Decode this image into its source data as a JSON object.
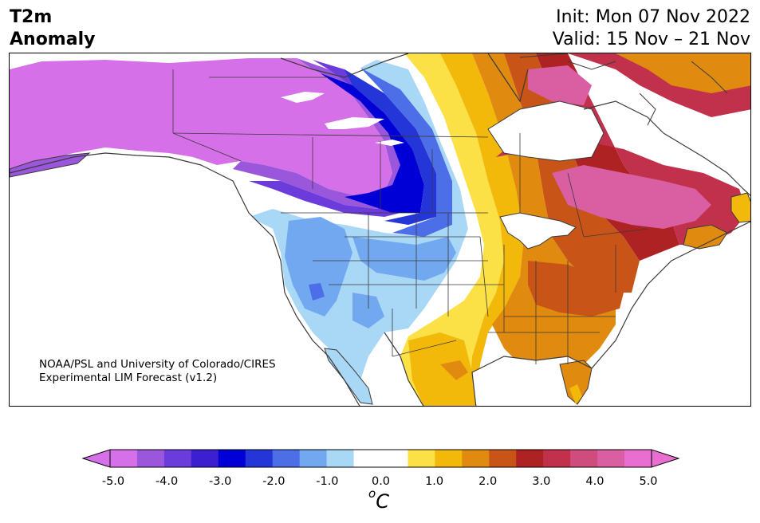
{
  "title": {
    "line1": "T2m",
    "line2": "Anomaly"
  },
  "init": {
    "line1": "Init: Mon 07 Nov 2022",
    "line2": "Valid: 15 Nov – 21 Nov"
  },
  "credit": {
    "line1": "NOAA/PSL and University of Colorado/CIRES",
    "line2": "Experimental LIM Forecast (v1.2)"
  },
  "colorbar": {
    "unit_base": "C",
    "unit_sup": "o",
    "ticks": [
      "-5.0",
      "-4.0",
      "-3.0",
      "-2.0",
      "-1.0",
      "0.0",
      "1.0",
      "2.0",
      "3.0",
      "4.0",
      "5.0"
    ],
    "colors": [
      "#d670e8",
      "#9a57dc",
      "#6b3bdc",
      "#3c1fcf",
      "#0000d6",
      "#2536d9",
      "#4c6fe8",
      "#72a8ef",
      "#a9d8f7",
      "#ffffff",
      "#ffffff",
      "#fbe046",
      "#f2b90a",
      "#e08a10",
      "#c85418",
      "#ae2223",
      "#c2314b",
      "#cf4d7d",
      "#d95ea2",
      "#e86fcf"
    ],
    "under_color": "#d670e8",
    "over_color": "#e86fcf"
  },
  "map_colors": {
    "ocean": "#ffffff",
    "coast": "#3a3a3a",
    "cold5": "#d670e8",
    "cold4": "#9a57dc",
    "cold35": "#6b3bdc",
    "cold3": "#3c1fcf",
    "cold25": "#0000d6",
    "cold2": "#2536d9",
    "cold15": "#4c6fe8",
    "cold1": "#72a8ef",
    "cold05": "#a9d8f7",
    "warm05": "#fbe046",
    "warm1": "#f2b90a",
    "warm15": "#e08a10",
    "warm2": "#c85418",
    "warm25": "#ae2223",
    "warm3": "#c2314b",
    "warm35": "#cf4d7d",
    "warm4": "#d95ea2"
  }
}
